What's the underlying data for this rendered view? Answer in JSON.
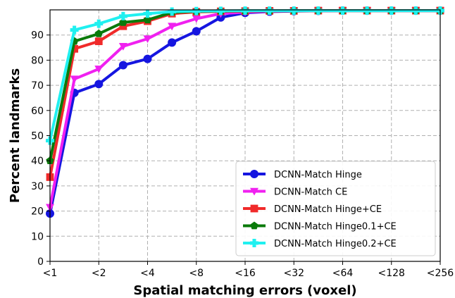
{
  "chart_data": {
    "type": "line",
    "title": "",
    "xlabel": "Spatial matching errors (voxel)",
    "ylabel": "Percent landmarks",
    "x_ticks": [
      "<1",
      "<2",
      "<4",
      "<8",
      "<16",
      "<32",
      "<64",
      "<128",
      "<256"
    ],
    "x": [
      1,
      1.4142,
      2,
      2.8284,
      4,
      5.6569,
      8,
      11.3137,
      16,
      22.6274,
      32,
      45.2548,
      64,
      90.5097,
      128,
      181.0193,
      256
    ],
    "x_scale": "log2",
    "xlim": [
      1,
      256
    ],
    "y_ticks": [
      0,
      10,
      20,
      30,
      40,
      50,
      60,
      70,
      80,
      90
    ],
    "ylim": [
      0,
      100
    ],
    "grid": true,
    "legend_position": "lower-right",
    "series": [
      {
        "name": "DCNN-Match Hinge",
        "color": "#1515e0",
        "marker": "circle",
        "values": [
          19,
          67,
          70.5,
          78,
          80.5,
          87,
          91.5,
          97,
          98.8,
          99.3,
          99.5,
          99.6,
          99.7,
          99.7,
          99.7,
          99.7,
          99.7
        ]
      },
      {
        "name": "DCNN-Match CE",
        "color": "#f020f0",
        "marker": "triangle-down",
        "values": [
          21.5,
          72.5,
          76.5,
          85.5,
          88.5,
          93.5,
          96.5,
          98.5,
          99.1,
          99.4,
          99.6,
          99.6,
          99.7,
          99.7,
          99.7,
          99.7,
          99.7
        ]
      },
      {
        "name": "DCNN-Match Hinge+CE",
        "color": "#f02a2a",
        "marker": "square",
        "values": [
          33.5,
          84.5,
          87.5,
          93.5,
          95.5,
          98.5,
          99.2,
          99.4,
          99.5,
          99.6,
          99.6,
          99.7,
          99.7,
          99.7,
          99.7,
          99.7,
          99.7
        ]
      },
      {
        "name": "DCNN-Match Hinge0.1+CE",
        "color": "#0a7a0a",
        "marker": "pentagon",
        "values": [
          40,
          87.5,
          90.5,
          95,
          96,
          99,
          99.4,
          99.5,
          99.6,
          99.6,
          99.7,
          99.7,
          99.7,
          99.7,
          99.7,
          99.7,
          99.7
        ]
      },
      {
        "name": "DCNN-Match Hinge0.2+CE",
        "color": "#20f0f0",
        "marker": "plus",
        "values": [
          48,
          92,
          94.5,
          97.5,
          98.5,
          99.3,
          99.5,
          99.6,
          99.7,
          99.7,
          99.7,
          99.7,
          99.7,
          99.7,
          99.7,
          99.7,
          99.7
        ]
      }
    ]
  }
}
